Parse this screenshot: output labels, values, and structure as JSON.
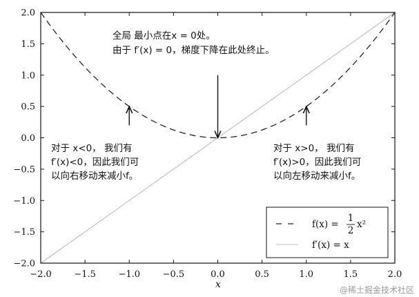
{
  "chart_data": {
    "type": "line",
    "xlabel": "x",
    "ylabel": "",
    "xlim": [
      -2.0,
      2.0
    ],
    "ylim": [
      -2.0,
      2.0
    ],
    "xticks": [
      -2.0,
      -1.5,
      -1.0,
      -0.5,
      0.0,
      0.5,
      1.0,
      1.5,
      2.0
    ],
    "yticks": [
      -2.0,
      -1.5,
      -1.0,
      -0.5,
      0.0,
      0.5,
      1.0,
      1.5,
      2.0
    ],
    "xtick_labels": [
      "−2.0",
      "−1.5",
      "−1.0",
      "−0.5",
      "0.0",
      "0.5",
      "1.0",
      "1.5",
      "2.0"
    ],
    "ytick_labels": [
      "−2.0",
      "−1.5",
      "−1.0",
      "−0.5",
      "0.0",
      "0.5",
      "1.0",
      "1.5",
      "2.0"
    ],
    "grid": false,
    "legend_position": "bottom-right",
    "series": [
      {
        "name": "f(x) = ½x²",
        "style": "dashed",
        "color": "#222222",
        "x": [
          -2.0,
          -1.75,
          -1.5,
          -1.25,
          -1.0,
          -0.75,
          -0.5,
          -0.25,
          0.0,
          0.25,
          0.5,
          0.75,
          1.0,
          1.25,
          1.5,
          1.75,
          2.0
        ],
        "y": [
          2.0,
          1.53,
          1.125,
          0.78,
          0.5,
          0.28,
          0.125,
          0.03,
          0.0,
          0.03,
          0.125,
          0.28,
          0.5,
          0.78,
          1.125,
          1.53,
          2.0
        ]
      },
      {
        "name": "f′(x) = x",
        "style": "solid",
        "color": "#bbbbbb",
        "x": [
          -2.0,
          2.0
        ],
        "y": [
          -2.0,
          2.0
        ]
      }
    ],
    "legend": [
      {
        "label_main": "f(x) = ",
        "frac_num": "1",
        "frac_den": "2",
        "label_tail": "x²"
      },
      {
        "label_main": "f′(x) = x"
      }
    ],
    "annotations": [
      {
        "lines": [
          "全局 最小点在x = 0处。",
          "由于 f′(x) = 0，梯度下降在此处终止。"
        ],
        "arrow_from": [
          0.0,
          1.0
        ],
        "arrow_to": [
          0.0,
          0.0
        ]
      },
      {
        "lines": [
          "对于 x<0， 我们有",
          "f′(x)<0，因此我们可",
          "以向右移动来减小f。"
        ],
        "arrow_from": [
          -1.0,
          0.2
        ],
        "arrow_to": [
          -1.0,
          0.5
        ]
      },
      {
        "lines": [
          "对于 x>0， 我们有",
          "f′(x)>0，因此我们可",
          "以向左移动来减小f。"
        ],
        "arrow_from": [
          1.0,
          0.2
        ],
        "arrow_to": [
          1.0,
          0.5
        ]
      }
    ]
  },
  "watermark": "@稀土掘金技术社区"
}
